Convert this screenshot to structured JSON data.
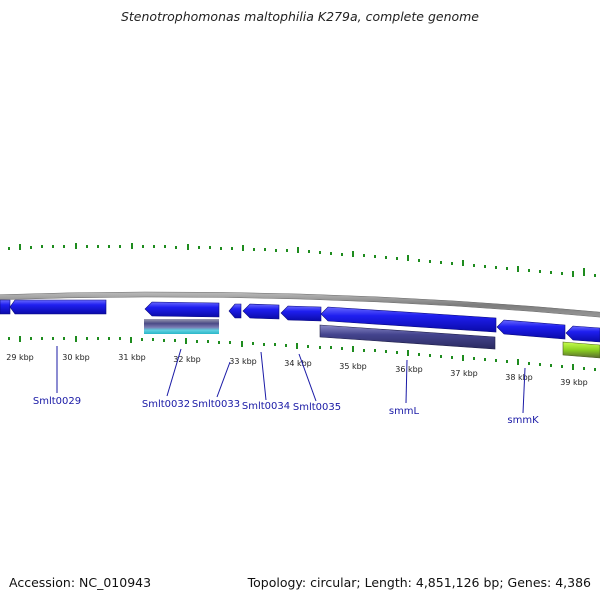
{
  "title": "Stenotrophomonas maltophilia K279a, complete genome",
  "footer": {
    "accession": "Accession: NC_010943",
    "summary": "Topology: circular; Length: 4,851,126 bp; Genes: 4,386"
  },
  "colors": {
    "backbone": "#8c8c8c",
    "gene_forward": "#1414e6",
    "gene_other": "#3c3c8c",
    "tick": "#1e8c1e",
    "label": "#1a1aa6"
  },
  "kbp_labels": [
    "29 kbp",
    "30 kbp",
    "31 kbp",
    "32 kbp",
    "33 kbp",
    "34 kbp",
    "35 kbp",
    "36 kbp",
    "37 kbp",
    "38 kbp",
    "39 kbp"
  ],
  "gene_labels": [
    "Smlt0029",
    "Smlt0032",
    "Smlt0033",
    "Smlt0034",
    "Smlt0035",
    "smmL",
    "smmK"
  ]
}
